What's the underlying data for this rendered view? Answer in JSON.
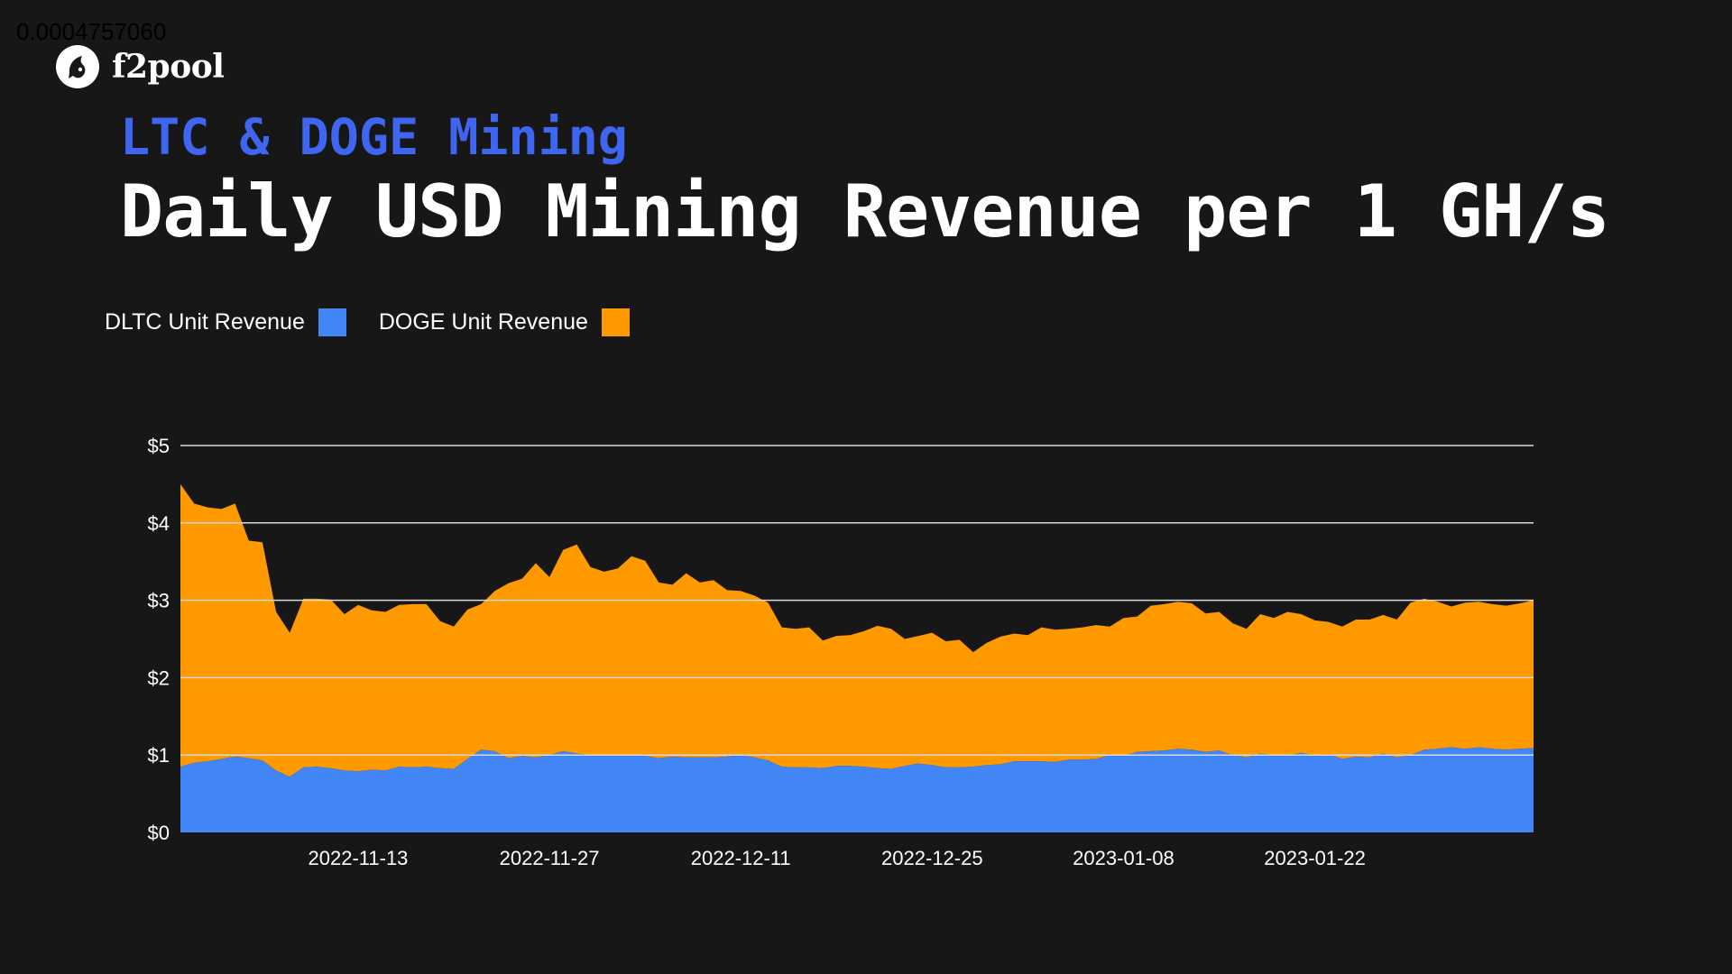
{
  "corner_value": "0.0004757060",
  "logo": {
    "text": "f2pool"
  },
  "header": {
    "subtitle": "LTC & DOGE Mining",
    "title": "Daily USD Mining Revenue per 1 GH/s"
  },
  "colors": {
    "ltc": "#4285f4",
    "doge": "#ff9900",
    "background": "#171717",
    "subtitle": "#3f66f0"
  },
  "chart_data": {
    "type": "area",
    "stacked": true,
    "title": "Daily USD Mining Revenue per 1 GH/s",
    "xlabel": "",
    "ylabel": "",
    "ylim": [
      0,
      5
    ],
    "yticks": [
      0,
      1,
      2,
      3,
      4,
      5
    ],
    "ytick_labels": [
      "$0",
      "$1",
      "$2",
      "$3",
      "$4",
      "$5"
    ],
    "xlim": [
      "2022-10-31",
      "2023-02-07"
    ],
    "xticks": [
      "2022-11-13",
      "2022-11-27",
      "2022-12-11",
      "2022-12-25",
      "2023-01-08",
      "2023-01-22"
    ],
    "grid": true,
    "legend_position": "top-left",
    "x": [
      "2022-10-31",
      "2022-11-01",
      "2022-11-02",
      "2022-11-03",
      "2022-11-04",
      "2022-11-05",
      "2022-11-06",
      "2022-11-07",
      "2022-11-08",
      "2022-11-09",
      "2022-11-10",
      "2022-11-11",
      "2022-11-12",
      "2022-11-13",
      "2022-11-14",
      "2022-11-15",
      "2022-11-16",
      "2022-11-17",
      "2022-11-18",
      "2022-11-19",
      "2022-11-20",
      "2022-11-21",
      "2022-11-22",
      "2022-11-23",
      "2022-11-24",
      "2022-11-25",
      "2022-11-26",
      "2022-11-27",
      "2022-11-28",
      "2022-11-29",
      "2022-11-30",
      "2022-12-01",
      "2022-12-02",
      "2022-12-03",
      "2022-12-04",
      "2022-12-05",
      "2022-12-06",
      "2022-12-07",
      "2022-12-08",
      "2022-12-09",
      "2022-12-10",
      "2022-12-11",
      "2022-12-12",
      "2022-12-13",
      "2022-12-14",
      "2022-12-15",
      "2022-12-16",
      "2022-12-17",
      "2022-12-18",
      "2022-12-19",
      "2022-12-20",
      "2022-12-21",
      "2022-12-22",
      "2022-12-23",
      "2022-12-24",
      "2022-12-25",
      "2022-12-26",
      "2022-12-27",
      "2022-12-28",
      "2022-12-29",
      "2022-12-30",
      "2022-12-31",
      "2023-01-01",
      "2023-01-02",
      "2023-01-03",
      "2023-01-04",
      "2023-01-05",
      "2023-01-06",
      "2023-01-07",
      "2023-01-08",
      "2023-01-09",
      "2023-01-10",
      "2023-01-11",
      "2023-01-12",
      "2023-01-13",
      "2023-01-14",
      "2023-01-15",
      "2023-01-16",
      "2023-01-17",
      "2023-01-18",
      "2023-01-19",
      "2023-01-20",
      "2023-01-21",
      "2023-01-22",
      "2023-01-23",
      "2023-01-24",
      "2023-01-25",
      "2023-01-26",
      "2023-01-27",
      "2023-01-28",
      "2023-01-29",
      "2023-01-30",
      "2023-01-31",
      "2023-02-01",
      "2023-02-02",
      "2023-02-03",
      "2023-02-04",
      "2023-02-05",
      "2023-02-06",
      "2023-02-07"
    ],
    "series": [
      {
        "name": "DLTC Unit Revenue",
        "values": [
          0.85,
          0.9,
          0.92,
          0.95,
          0.98,
          0.96,
          0.93,
          0.8,
          0.72,
          0.84,
          0.85,
          0.83,
          0.8,
          0.79,
          0.81,
          0.8,
          0.85,
          0.84,
          0.85,
          0.83,
          0.82,
          0.95,
          1.07,
          1.05,
          0.96,
          0.99,
          0.97,
          1.0,
          1.05,
          1.02,
          1.0,
          0.99,
          1.0,
          1.0,
          0.99,
          0.96,
          0.98,
          0.97,
          0.97,
          0.97,
          0.98,
          1.0,
          0.97,
          0.93,
          0.85,
          0.84,
          0.84,
          0.83,
          0.86,
          0.86,
          0.85,
          0.83,
          0.82,
          0.86,
          0.89,
          0.87,
          0.84,
          0.84,
          0.85,
          0.87,
          0.88,
          0.92,
          0.92,
          0.92,
          0.91,
          0.94,
          0.94,
          0.95,
          1.0,
          0.99,
          1.04,
          1.05,
          1.06,
          1.08,
          1.07,
          1.04,
          1.06,
          1.0,
          0.97,
          1.02,
          1.0,
          0.99,
          1.03,
          0.99,
          1.01,
          0.95,
          0.98,
          0.97,
          1.02,
          0.97,
          1.0,
          1.07,
          1.08,
          1.1,
          1.08,
          1.1,
          1.08,
          1.07,
          1.08,
          1.09
        ]
      },
      {
        "name": "DOGE Unit Revenue",
        "values": [
          4.5,
          4.25,
          4.2,
          4.18,
          4.25,
          3.77,
          3.75,
          2.85,
          2.58,
          3.02,
          3.02,
          3.01,
          2.82,
          2.94,
          2.87,
          2.85,
          2.94,
          2.95,
          2.95,
          2.73,
          2.66,
          2.88,
          2.95,
          3.12,
          3.22,
          3.28,
          3.48,
          3.3,
          3.65,
          3.72,
          3.43,
          3.37,
          3.41,
          3.57,
          3.51,
          3.23,
          3.2,
          3.35,
          3.23,
          3.26,
          3.13,
          3.12,
          3.06,
          2.97,
          2.65,
          2.63,
          2.65,
          2.48,
          2.54,
          2.55,
          2.6,
          2.67,
          2.63,
          2.5,
          2.54,
          2.58,
          2.47,
          2.49,
          2.33,
          2.45,
          2.53,
          2.57,
          2.55,
          2.65,
          2.62,
          2.63,
          2.65,
          2.68,
          2.66,
          2.77,
          2.79,
          2.93,
          2.95,
          2.98,
          2.96,
          2.83,
          2.85,
          2.7,
          2.63,
          2.82,
          2.77,
          2.85,
          2.82,
          2.74,
          2.72,
          2.66,
          2.75,
          2.75,
          2.81,
          2.75,
          2.97,
          3.02,
          2.98,
          2.92,
          2.97,
          2.98,
          2.95,
          2.93,
          2.96,
          3.0
        ]
      }
    ]
  },
  "legend": {
    "items": [
      {
        "label": "DLTC Unit Revenue",
        "color": "#4285f4"
      },
      {
        "label": "DOGE Unit Revenue",
        "color": "#ff9900"
      }
    ]
  }
}
